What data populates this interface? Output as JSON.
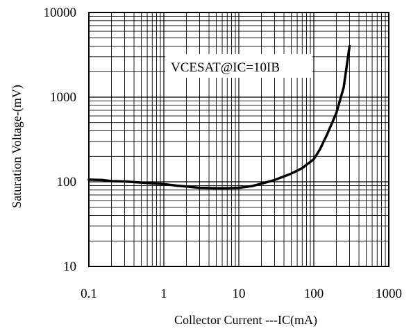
{
  "chart_data": {
    "type": "line",
    "title": "",
    "xlabel": "Collector Current ---IC(mA)",
    "ylabel": "Saturation Voltage-(mV)",
    "xscale": "log",
    "yscale": "log",
    "xlim": [
      0.1,
      1000
    ],
    "ylim": [
      10,
      10000
    ],
    "x_ticks": [
      {
        "value": 0.1,
        "label": "0.1"
      },
      {
        "value": 1,
        "label": "1"
      },
      {
        "value": 10,
        "label": "10"
      },
      {
        "value": 100,
        "label": "100"
      },
      {
        "value": 1000,
        "label": "1000"
      }
    ],
    "y_ticks": [
      {
        "value": 10,
        "label": "10"
      },
      {
        "value": 100,
        "label": "100"
      },
      {
        "value": 1000,
        "label": "1000"
      },
      {
        "value": 10000,
        "label": "10000"
      }
    ],
    "grid": true,
    "annotation": "VCESAT@IC=10IB",
    "series": [
      {
        "name": "",
        "color": "#000000",
        "x": [
          0.1,
          0.15,
          0.2,
          0.3,
          0.5,
          0.7,
          1,
          1.5,
          2,
          3,
          5,
          7,
          10,
          15,
          20,
          30,
          50,
          70,
          100,
          120,
          150,
          200,
          250,
          300
        ],
        "y": [
          106,
          105,
          102,
          101,
          98,
          96,
          94,
          90,
          88,
          85,
          84,
          84,
          85,
          89,
          95,
          105,
          125,
          145,
          185,
          240,
          360,
          650,
          1300,
          4000
        ]
      }
    ]
  }
}
